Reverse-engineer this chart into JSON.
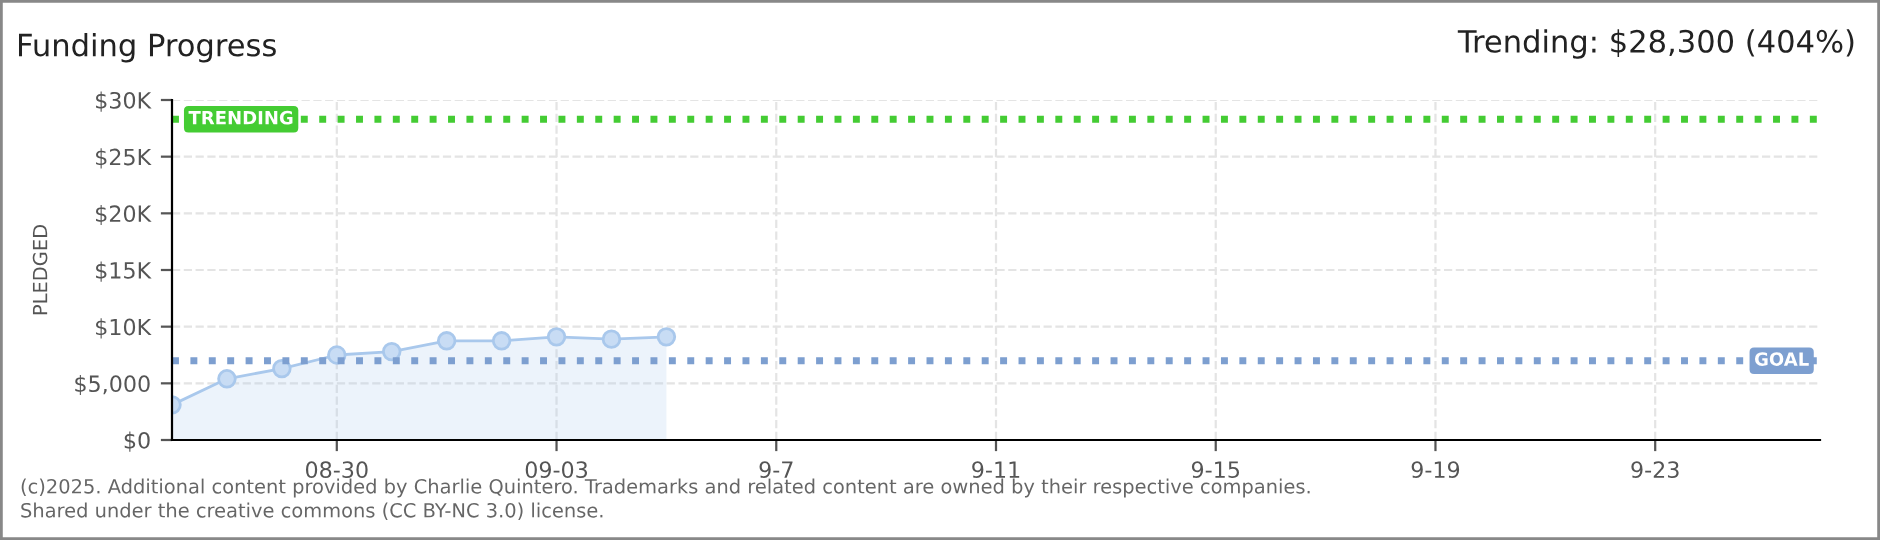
{
  "chart_data": {
    "type": "area",
    "title": "Funding Progress",
    "ylabel": "PLEDGED",
    "x": [
      "2025-08-27",
      "2025-08-28",
      "2025-08-29",
      "2025-08-30",
      "2025-08-31",
      "2025-09-01",
      "2025-09-02",
      "2025-09-03",
      "2025-09-04",
      "2025-09-05"
    ],
    "series": [
      {
        "color": "#a9c8ec",
        "values": [
          3100,
          5400,
          6300,
          7500,
          7800,
          8750,
          8750,
          9100,
          8900,
          9100
        ]
      }
    ],
    "marker": "circle",
    "grid": true,
    "ylim": [
      0,
      30000
    ],
    "yticks": [
      {
        "value": 0,
        "label": "$0"
      },
      {
        "value": 5000,
        "label": "$5,000"
      },
      {
        "value": 10000,
        "label": "$10K"
      },
      {
        "value": 15000,
        "label": "$15K"
      },
      {
        "value": 20000,
        "label": "$20K"
      },
      {
        "value": 25000,
        "label": "$25K"
      },
      {
        "value": 30000,
        "label": "$30K"
      }
    ],
    "xlim": [
      "2025-08-27",
      "2025-09-26"
    ],
    "xticks": [
      {
        "value": "2025-08-30",
        "label": "08-30"
      },
      {
        "value": "2025-09-03",
        "label": "09-03"
      },
      {
        "value": "2025-09-07",
        "label": "9-7"
      },
      {
        "value": "2025-09-11",
        "label": "9-11"
      },
      {
        "value": "2025-09-15",
        "label": "9-15"
      },
      {
        "value": "2025-09-19",
        "label": "9-19"
      },
      {
        "value": "2025-09-23",
        "label": "9-23"
      }
    ],
    "ref_lines": [
      {
        "axis": "y",
        "value": 28300,
        "label": "TRENDING",
        "color": "#44cc33",
        "line_style": "dotted"
      },
      {
        "axis": "y",
        "value": 7000,
        "label": "GOAL",
        "color": "#7d9fd0",
        "line_style": "dotted"
      }
    ],
    "annotations": [
      "Trending: $28,300 (404%)",
      "(c)2025. Additional content provided by Charlie Quintero. Trademarks and related content are owned by their respective companies.",
      "Shared under the creative commons (CC BY-NC 3.0) license."
    ]
  }
}
